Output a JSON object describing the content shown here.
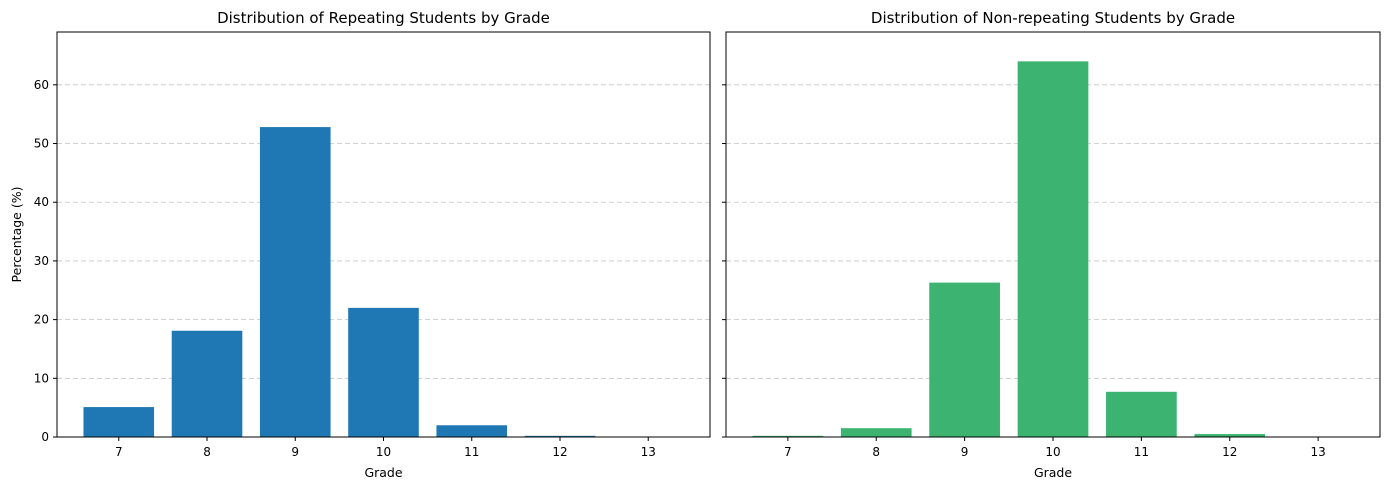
{
  "chart_data": [
    {
      "type": "bar",
      "title": "Distribution of Repeating Students by Grade",
      "xlabel": "Grade",
      "ylabel": "Percentage (%)",
      "categories": [
        "7",
        "8",
        "9",
        "10",
        "11",
        "12",
        "13"
      ],
      "values": [
        5.1,
        18.1,
        52.8,
        22.0,
        2.0,
        0.2,
        0.0
      ],
      "ylim": [
        0,
        69
      ],
      "yticks": [
        0,
        10,
        20,
        30,
        40,
        50,
        60
      ],
      "color": "#1f77b4",
      "grid": "y-dashed"
    },
    {
      "type": "bar",
      "title": "Distribution of Non-repeating Students by Grade",
      "xlabel": "Grade",
      "ylabel": "",
      "categories": [
        "7",
        "8",
        "9",
        "10",
        "11",
        "12",
        "13"
      ],
      "values": [
        0.2,
        1.5,
        26.3,
        64.0,
        7.7,
        0.5,
        0.0
      ],
      "ylim": [
        0,
        69
      ],
      "yticks": [
        0,
        10,
        20,
        30,
        40,
        50,
        60
      ],
      "color": "#3cb371",
      "grid": "y-dashed"
    }
  ]
}
